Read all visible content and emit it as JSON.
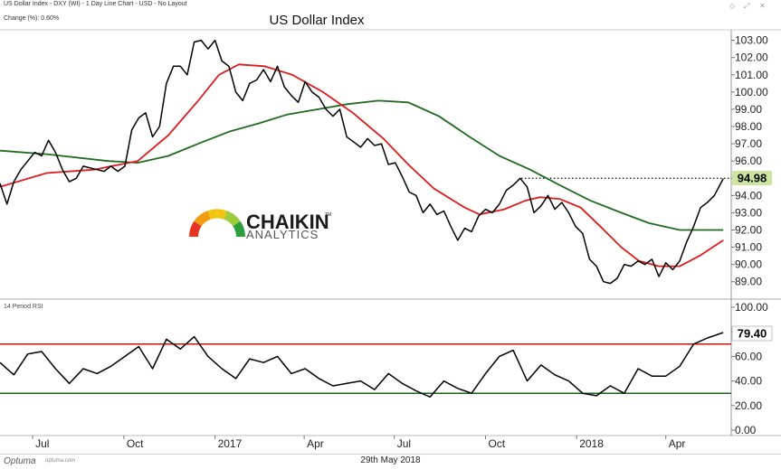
{
  "header": {
    "chart_descriptor": "US Dollar Index - DXY (WI) - 1 Day Line Chart - USD - No Layout",
    "change_text": "Change (%): 0.60%",
    "window_controls": [
      "◇",
      "⤢",
      "✕"
    ]
  },
  "logo": {
    "name": "CHAIKIN",
    "tm": "TM",
    "sub": "ANALYTICS"
  },
  "footer": {
    "brand": "Optuma",
    "site": "optuma.com",
    "date": "29th May 2018"
  },
  "colors": {
    "price": "#000000",
    "ma_short": "#e31a1c",
    "ma_long": "#1f6b1f",
    "rsi_bands": "#cc1111",
    "rsi_lower": "#1f5f1f",
    "label_bg": "#cce6a0"
  },
  "chart_data": [
    {
      "type": "line",
      "title": "US Dollar Index",
      "ylim": [
        88.2,
        103.4
      ],
      "yticks": [
        89,
        90,
        91,
        92,
        93,
        94,
        95,
        96,
        97,
        98,
        99,
        100,
        101,
        102,
        103
      ],
      "ytick_labels": [
        "89.00",
        "90.00",
        "91.00",
        "92.00",
        "93.00",
        "94.00",
        "95.00",
        "96.00",
        "97.00",
        "98.00",
        "99.00",
        "100.00",
        "101.00",
        "102.00",
        "103.00"
      ],
      "x_domain": [
        "2016-05-29",
        "2018-06-06"
      ],
      "x_ticks": [
        {
          "date": "2016-07-01",
          "label": "Jul"
        },
        {
          "date": "2016-10-01",
          "label": "Oct"
        },
        {
          "date": "2017-01-01",
          "label": "2017"
        },
        {
          "date": "2017-04-01",
          "label": "Apr"
        },
        {
          "date": "2017-07-01",
          "label": "Jul"
        },
        {
          "date": "2017-10-01",
          "label": "Oct"
        },
        {
          "date": "2018-01-01",
          "label": "2018"
        },
        {
          "date": "2018-04-01",
          "label": "Apr"
        }
      ],
      "last_value_label": "94.98",
      "resistance_level": 95.0,
      "resistance_from": "2017-11-06",
      "series": [
        {
          "role": "price",
          "dates": [
            "2016-05-29",
            "2016-06-05",
            "2016-06-12",
            "2016-06-19",
            "2016-06-26",
            "2016-07-03",
            "2016-07-10",
            "2016-07-17",
            "2016-07-24",
            "2016-07-31",
            "2016-08-07",
            "2016-08-14",
            "2016-08-21",
            "2016-08-28",
            "2016-09-04",
            "2016-09-11",
            "2016-09-18",
            "2016-09-25",
            "2016-10-02",
            "2016-10-09",
            "2016-10-16",
            "2016-10-23",
            "2016-10-30",
            "2016-11-06",
            "2016-11-13",
            "2016-11-20",
            "2016-11-27",
            "2016-12-04",
            "2016-12-11",
            "2016-12-18",
            "2016-12-25",
            "2017-01-01",
            "2017-01-08",
            "2017-01-15",
            "2017-01-22",
            "2017-01-29",
            "2017-02-05",
            "2017-02-12",
            "2017-02-19",
            "2017-02-26",
            "2017-03-05",
            "2017-03-12",
            "2017-03-19",
            "2017-03-26",
            "2017-04-02",
            "2017-04-09",
            "2017-04-16",
            "2017-04-23",
            "2017-04-30",
            "2017-05-07",
            "2017-05-14",
            "2017-05-21",
            "2017-05-28",
            "2017-06-04",
            "2017-06-11",
            "2017-06-18",
            "2017-06-25",
            "2017-07-02",
            "2017-07-09",
            "2017-07-16",
            "2017-07-23",
            "2017-07-30",
            "2017-08-06",
            "2017-08-13",
            "2017-08-20",
            "2017-08-27",
            "2017-09-03",
            "2017-09-10",
            "2017-09-17",
            "2017-09-24",
            "2017-10-01",
            "2017-10-08",
            "2017-10-15",
            "2017-10-22",
            "2017-10-29",
            "2017-11-05",
            "2017-11-12",
            "2017-11-19",
            "2017-11-26",
            "2017-12-03",
            "2017-12-10",
            "2017-12-17",
            "2017-12-24",
            "2017-12-31",
            "2018-01-07",
            "2018-01-14",
            "2018-01-21",
            "2018-01-28",
            "2018-02-04",
            "2018-02-11",
            "2018-02-18",
            "2018-02-25",
            "2018-03-04",
            "2018-03-11",
            "2018-03-18",
            "2018-03-25",
            "2018-04-01",
            "2018-04-08",
            "2018-04-15",
            "2018-04-22",
            "2018-04-29",
            "2018-05-06",
            "2018-05-13",
            "2018-05-20",
            "2018-05-29"
          ],
          "values": [
            94.7,
            93.5,
            94.8,
            95.5,
            96.0,
            96.5,
            96.3,
            97.2,
            96.5,
            95.5,
            94.8,
            95.0,
            95.7,
            95.6,
            95.5,
            95.4,
            95.7,
            95.4,
            95.7,
            97.8,
            98.5,
            98.8,
            97.4,
            98.0,
            100.5,
            101.5,
            101.5,
            101.0,
            102.9,
            103.0,
            102.5,
            103.0,
            101.8,
            101.5,
            100.0,
            99.5,
            100.5,
            100.7,
            101.3,
            100.6,
            101.5,
            100.3,
            99.8,
            99.4,
            100.6,
            100.0,
            99.7,
            99.0,
            98.6,
            99.0,
            97.4,
            97.1,
            96.8,
            97.3,
            96.9,
            97.0,
            95.8,
            95.9,
            95.1,
            94.2,
            94.0,
            93.0,
            93.5,
            92.9,
            93.1,
            92.2,
            91.4,
            92.1,
            91.9,
            92.8,
            93.2,
            93.0,
            93.5,
            94.3,
            94.6,
            95.0,
            94.5,
            93.0,
            93.4,
            94.0,
            93.2,
            93.6,
            93.0,
            92.2,
            91.8,
            90.3,
            89.9,
            89.0,
            88.9,
            89.2,
            90.0,
            89.9,
            90.2,
            90.0,
            90.3,
            89.3,
            90.1,
            89.7,
            90.2,
            91.3,
            92.2,
            93.3,
            93.6,
            94.0,
            94.98
          ]
        },
        {
          "role": "ma_short",
          "dates": [
            "2016-05-29",
            "2016-07-15",
            "2016-09-01",
            "2016-10-15",
            "2016-11-15",
            "2016-12-15",
            "2017-01-05",
            "2017-01-25",
            "2017-02-20",
            "2017-03-20",
            "2017-04-20",
            "2017-05-20",
            "2017-06-20",
            "2017-07-15",
            "2017-08-10",
            "2017-09-10",
            "2017-09-25",
            "2017-10-20",
            "2017-11-10",
            "2017-11-25",
            "2017-12-15",
            "2018-01-05",
            "2018-01-25",
            "2018-02-15",
            "2018-03-05",
            "2018-03-25",
            "2018-04-15",
            "2018-05-05",
            "2018-05-29"
          ],
          "values": [
            94.5,
            95.3,
            95.5,
            96.0,
            97.5,
            99.5,
            101.0,
            101.6,
            101.5,
            101.0,
            100.0,
            98.8,
            97.3,
            95.8,
            94.4,
            93.3,
            92.9,
            93.2,
            93.7,
            93.9,
            93.8,
            93.3,
            92.2,
            91.0,
            90.2,
            89.9,
            89.9,
            90.5,
            91.4
          ]
        },
        {
          "role": "ma_long",
          "dates": [
            "2016-05-29",
            "2016-07-15",
            "2016-09-15",
            "2016-10-15",
            "2016-11-15",
            "2016-12-15",
            "2017-01-15",
            "2017-02-15",
            "2017-03-15",
            "2017-04-15",
            "2017-05-15",
            "2017-06-15",
            "2017-07-15",
            "2017-08-15",
            "2017-09-15",
            "2017-10-15",
            "2017-11-15",
            "2017-12-15",
            "2018-01-15",
            "2018-02-15",
            "2018-03-15",
            "2018-04-15",
            "2018-05-29"
          ],
          "values": [
            96.6,
            96.4,
            96.0,
            95.9,
            96.3,
            97.0,
            97.7,
            98.2,
            98.7,
            99.0,
            99.3,
            99.5,
            99.4,
            98.6,
            97.4,
            96.3,
            95.5,
            94.6,
            93.7,
            93.0,
            92.4,
            92.0,
            92.0
          ]
        }
      ]
    },
    {
      "type": "line",
      "title": "14 Period RSI",
      "ylim": [
        0,
        100
      ],
      "yticks": [
        0,
        20,
        40,
        60,
        80,
        100
      ],
      "ytick_labels": [
        "0.00",
        "20.00",
        "40.00",
        "60.00",
        "80.00",
        "100.00"
      ],
      "bands": [
        70,
        30
      ],
      "last_value_label": "79.40",
      "series": [
        {
          "role": "rsi",
          "dates": [
            "2016-05-29",
            "2016-06-12",
            "2016-06-26",
            "2016-07-10",
            "2016-07-24",
            "2016-08-07",
            "2016-08-21",
            "2016-09-04",
            "2016-09-18",
            "2016-10-02",
            "2016-10-16",
            "2016-10-30",
            "2016-11-13",
            "2016-11-27",
            "2016-12-11",
            "2016-12-25",
            "2017-01-08",
            "2017-01-22",
            "2017-02-05",
            "2017-02-19",
            "2017-03-05",
            "2017-03-19",
            "2017-04-02",
            "2017-04-16",
            "2017-04-30",
            "2017-05-14",
            "2017-05-28",
            "2017-06-11",
            "2017-06-25",
            "2017-07-09",
            "2017-07-23",
            "2017-08-06",
            "2017-08-20",
            "2017-09-03",
            "2017-09-17",
            "2017-10-01",
            "2017-10-15",
            "2017-10-29",
            "2017-11-12",
            "2017-11-26",
            "2017-12-10",
            "2017-12-24",
            "2018-01-07",
            "2018-01-21",
            "2018-02-04",
            "2018-02-18",
            "2018-03-04",
            "2018-03-18",
            "2018-04-01",
            "2018-04-15",
            "2018-04-29",
            "2018-05-13",
            "2018-05-29"
          ],
          "values": [
            55,
            45,
            62,
            64,
            50,
            38,
            50,
            46,
            52,
            60,
            68,
            50,
            74,
            66,
            76,
            60,
            50,
            42,
            58,
            55,
            60,
            46,
            50,
            42,
            36,
            38,
            40,
            33,
            46,
            38,
            32,
            27,
            40,
            34,
            30,
            46,
            60,
            65,
            40,
            53,
            45,
            40,
            30,
            28,
            36,
            30,
            50,
            44,
            44,
            52,
            70,
            75,
            79.4
          ]
        }
      ]
    }
  ]
}
